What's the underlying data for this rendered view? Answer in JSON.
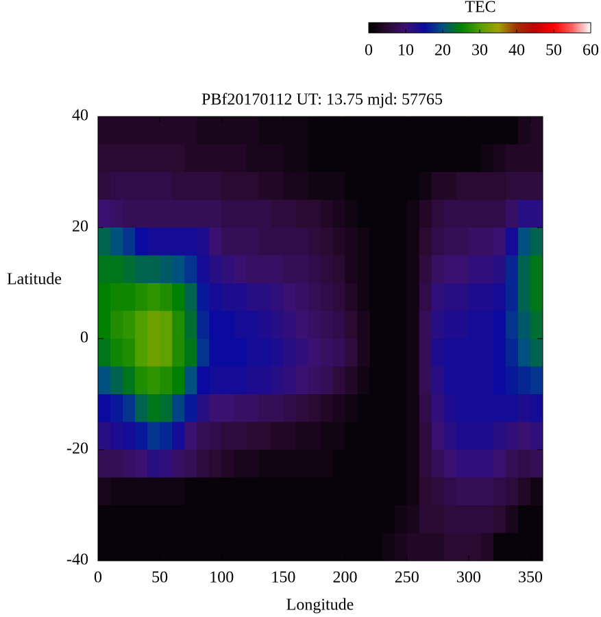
{
  "chart_data": {
    "type": "heatmap",
    "title": "PBf20170112  UT: 13.75  mjd: 57765",
    "xlabel": "Longitude",
    "ylabel": "Latitude",
    "xlim": [
      0,
      360
    ],
    "xticks": [
      0,
      50,
      100,
      150,
      200,
      250,
      300,
      350
    ],
    "ylim": [
      -40,
      40
    ],
    "yticks": [
      -40,
      -20,
      0,
      20,
      40
    ],
    "x": [
      5,
      15,
      25,
      35,
      45,
      55,
      65,
      75,
      85,
      95,
      105,
      115,
      125,
      135,
      145,
      155,
      165,
      175,
      185,
      195,
      205,
      215,
      225,
      235,
      245,
      255,
      265,
      275,
      285,
      295,
      305,
      315,
      325,
      335,
      345,
      355
    ],
    "y": [
      37.5,
      32.5,
      27.5,
      22.5,
      17.5,
      12.5,
      7.5,
      2.5,
      -2.5,
      -7.5,
      -12.5,
      -17.5,
      -22.5,
      -27.5,
      -32.5,
      -37.5
    ],
    "z": [
      [
        4,
        4,
        4,
        4,
        4,
        4,
        4,
        4,
        3,
        3,
        3,
        3,
        3,
        2,
        2,
        2,
        2,
        1,
        1,
        1,
        1,
        1,
        1,
        1,
        1,
        1,
        1,
        1,
        1,
        1,
        1,
        1,
        1,
        1,
        3,
        4
      ],
      [
        5,
        5,
        5,
        5,
        5,
        5,
        5,
        4,
        4,
        4,
        4,
        4,
        3,
        3,
        3,
        2,
        2,
        1,
        1,
        1,
        1,
        1,
        1,
        1,
        1,
        1,
        1,
        1,
        1,
        1,
        1,
        2,
        3,
        4,
        4,
        4
      ],
      [
        6,
        7,
        7,
        7,
        7,
        7,
        6,
        6,
        6,
        6,
        5,
        5,
        5,
        4,
        4,
        3,
        3,
        2,
        2,
        2,
        1,
        1,
        1,
        1,
        1,
        1,
        2,
        4,
        4,
        5,
        5,
        5,
        5,
        6,
        6,
        6
      ],
      [
        10,
        9,
        8,
        8,
        8,
        8,
        8,
        8,
        8,
        8,
        7,
        7,
        7,
        7,
        6,
        6,
        5,
        5,
        4,
        3,
        2,
        1,
        1,
        1,
        1,
        2,
        4,
        6,
        7,
        7,
        7,
        7,
        7,
        9,
        12,
        12
      ],
      [
        22,
        20,
        18,
        15,
        14,
        14,
        14,
        14,
        13,
        10,
        8,
        8,
        8,
        7,
        7,
        7,
        7,
        6,
        5,
        4,
        3,
        2,
        1,
        1,
        1,
        2,
        5,
        7,
        8,
        8,
        9,
        9,
        10,
        14,
        20,
        22
      ],
      [
        24,
        24,
        23,
        22,
        22,
        21,
        20,
        18,
        14,
        12,
        11,
        10,
        9,
        9,
        9,
        8,
        8,
        7,
        6,
        5,
        3,
        2,
        1,
        1,
        1,
        2,
        6,
        9,
        10,
        10,
        11,
        11,
        12,
        17,
        22,
        24
      ],
      [
        25,
        26,
        26,
        27,
        28,
        27,
        25,
        22,
        16,
        14,
        13,
        13,
        12,
        12,
        11,
        10,
        9,
        8,
        7,
        6,
        4,
        2,
        1,
        1,
        1,
        2,
        7,
        11,
        12,
        12,
        13,
        13,
        14,
        17,
        22,
        24
      ],
      [
        25,
        27,
        28,
        30,
        32,
        31,
        27,
        23,
        17,
        15,
        15,
        14,
        14,
        13,
        12,
        11,
        10,
        9,
        8,
        7,
        5,
        3,
        1,
        1,
        1,
        2,
        8,
        12,
        13,
        13,
        14,
        14,
        15,
        18,
        21,
        23
      ],
      [
        24,
        26,
        27,
        30,
        32,
        31,
        27,
        24,
        18,
        15,
        15,
        15,
        14,
        14,
        13,
        12,
        11,
        10,
        9,
        8,
        6,
        3,
        1,
        1,
        1,
        2,
        8,
        13,
        14,
        14,
        14,
        14,
        15,
        17,
        20,
        22
      ],
      [
        20,
        22,
        24,
        27,
        28,
        27,
        25,
        20,
        15,
        14,
        14,
        14,
        13,
        13,
        12,
        11,
        10,
        9,
        8,
        6,
        4,
        2,
        1,
        1,
        1,
        2,
        8,
        12,
        14,
        14,
        14,
        14,
        15,
        16,
        17,
        18
      ],
      [
        15,
        16,
        18,
        22,
        24,
        23,
        19,
        16,
        12,
        10,
        10,
        9,
        9,
        8,
        8,
        7,
        6,
        5,
        4,
        3,
        2,
        1,
        1,
        1,
        1,
        2,
        7,
        11,
        13,
        14,
        14,
        14,
        14,
        14,
        13,
        14
      ],
      [
        12,
        13,
        14,
        16,
        18,
        17,
        14,
        10,
        8,
        7,
        6,
        6,
        5,
        5,
        4,
        4,
        3,
        3,
        2,
        2,
        1,
        1,
        1,
        1,
        1,
        2,
        6,
        10,
        12,
        13,
        13,
        13,
        12,
        11,
        10,
        11
      ],
      [
        8,
        8,
        9,
        10,
        12,
        11,
        9,
        8,
        6,
        5,
        4,
        3,
        3,
        2,
        2,
        2,
        2,
        2,
        2,
        1,
        1,
        1,
        1,
        1,
        1,
        2,
        6,
        8,
        10,
        11,
        11,
        11,
        10,
        8,
        7,
        8
      ],
      [
        3,
        2,
        2,
        2,
        2,
        2,
        2,
        1,
        1,
        1,
        1,
        1,
        1,
        1,
        1,
        1,
        1,
        1,
        1,
        1,
        1,
        1,
        1,
        1,
        1,
        2,
        5,
        6,
        7,
        8,
        8,
        8,
        7,
        6,
        4,
        2
      ],
      [
        1,
        1,
        1,
        1,
        1,
        1,
        1,
        1,
        1,
        1,
        1,
        1,
        1,
        1,
        1,
        1,
        1,
        1,
        1,
        1,
        1,
        1,
        1,
        1,
        2,
        3,
        5,
        5,
        6,
        6,
        6,
        6,
        5,
        3,
        1,
        1
      ],
      [
        1,
        1,
        1,
        1,
        1,
        1,
        1,
        1,
        1,
        1,
        1,
        1,
        1,
        1,
        1,
        1,
        1,
        1,
        1,
        1,
        1,
        1,
        1,
        2,
        3,
        4,
        4,
        4,
        5,
        5,
        5,
        4,
        1,
        1,
        1,
        1
      ]
    ],
    "colormap": [
      "#000000",
      "#2a0a30",
      "#3a1070",
      "#0a0aa0",
      "#005080",
      "#008000",
      "#50a000",
      "#a0a000",
      "#a03000",
      "#c00000",
      "#ff0000",
      "#ff6060",
      "#ffffff"
    ],
    "colorbar": {
      "label": "TEC",
      "lim": [
        0,
        60
      ],
      "ticks": [
        0,
        10,
        20,
        30,
        40,
        50,
        60
      ]
    }
  }
}
